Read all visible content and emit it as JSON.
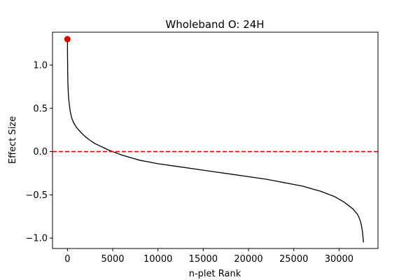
{
  "chart_data": {
    "type": "line",
    "title": "Wholeband O: 24H",
    "xlabel": "n-plet Rank",
    "ylabel": "Effect Size",
    "xlim": [
      -1650,
      34300
    ],
    "ylim": [
      -1.12,
      1.38
    ],
    "xticks": [
      0,
      5000,
      10000,
      15000,
      20000,
      25000,
      30000
    ],
    "xtick_labels": [
      "0",
      "5000",
      "10000",
      "15000",
      "20000",
      "25000",
      "30000"
    ],
    "yticks": [
      -1.0,
      -0.5,
      0.0,
      0.5,
      1.0
    ],
    "ytick_labels": [
      "−1.0",
      "−0.5",
      "0.0",
      "0.5",
      "1.0"
    ],
    "grid": false,
    "series": [
      {
        "type": "line",
        "color": "#000000",
        "x": [
          0,
          10,
          30,
          60,
          100,
          150,
          200,
          300,
          400,
          500,
          700,
          1000,
          1500,
          2000,
          2500,
          3000,
          3500,
          4000,
          4500,
          5000,
          6000,
          7000,
          8000,
          9000,
          10000,
          12000,
          14000,
          16000,
          18000,
          20000,
          22000,
          24000,
          25000,
          26000,
          27000,
          28000,
          29000,
          29500,
          30000,
          30500,
          31000,
          31500,
          32000,
          32200,
          32400,
          32500,
          32600,
          32700
        ],
        "y": [
          1.3,
          1.1,
          0.9,
          0.76,
          0.67,
          0.6,
          0.55,
          0.47,
          0.42,
          0.38,
          0.33,
          0.28,
          0.22,
          0.17,
          0.13,
          0.095,
          0.07,
          0.045,
          0.02,
          0.0,
          -0.04,
          -0.07,
          -0.1,
          -0.12,
          -0.14,
          -0.17,
          -0.2,
          -0.23,
          -0.26,
          -0.29,
          -0.32,
          -0.36,
          -0.38,
          -0.4,
          -0.43,
          -0.46,
          -0.5,
          -0.52,
          -0.55,
          -0.58,
          -0.62,
          -0.66,
          -0.72,
          -0.76,
          -0.82,
          -0.87,
          -0.94,
          -1.05
        ]
      },
      {
        "type": "scatter",
        "color": "#e00000",
        "points": [
          {
            "x": 0,
            "y": 1.3
          }
        ]
      },
      {
        "type": "hline",
        "color": "#e00000",
        "style": "dashed",
        "y": 0.0
      }
    ]
  }
}
